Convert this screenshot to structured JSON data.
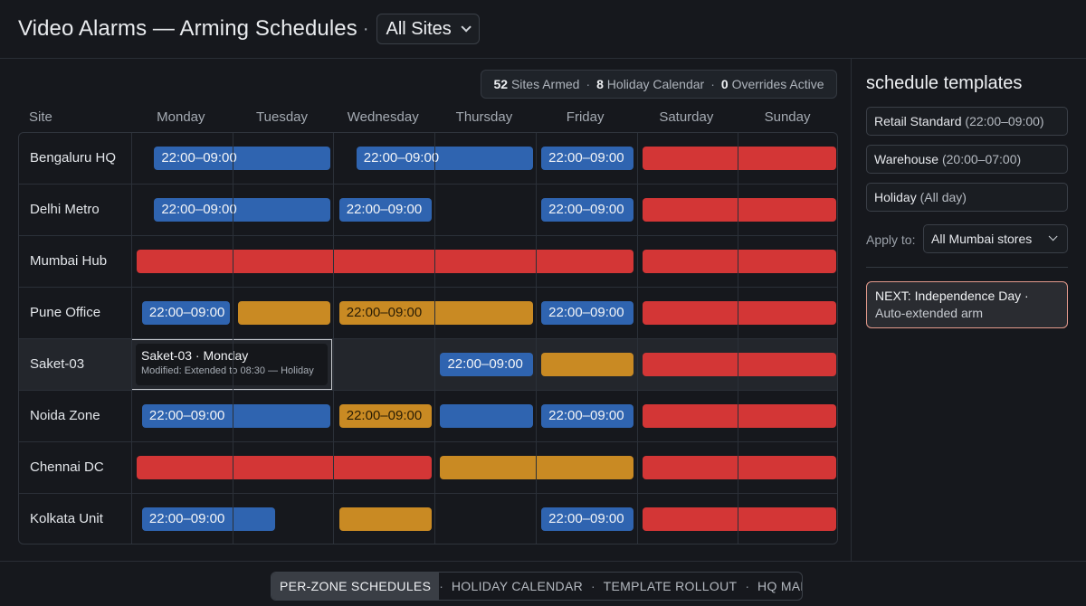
{
  "header": {
    "title": "Video Alarms — Arming Schedules",
    "separator": "·",
    "site_filter": "All Sites"
  },
  "summary": {
    "armed_count": "52",
    "armed_label": "Sites Armed",
    "holiday_count": "8",
    "holiday_label": "Holiday Calendar",
    "overrides_count": "0",
    "overrides_label": "Overrides Active"
  },
  "grid": {
    "site_header": "Site",
    "days": [
      "Monday",
      "Tuesday",
      "Wednesday",
      "Thursday",
      "Friday",
      "Saturday",
      "Sunday"
    ],
    "rows": [
      {
        "site": "Bengaluru HQ",
        "bars": [
          {
            "type": "blue",
            "start": 0.2,
            "end": 2.0,
            "label": "22:00–09:00"
          },
          {
            "type": "blue",
            "start": 2.2,
            "end": 4.0,
            "label": "22:00–09:00"
          },
          {
            "type": "blue",
            "start": 4.03,
            "end": 5.0,
            "label": "22:00–09:00"
          },
          {
            "type": "red",
            "start": 5.03,
            "end": 7.0,
            "label": ""
          }
        ]
      },
      {
        "site": "Delhi Metro",
        "bars": [
          {
            "type": "blue",
            "start": 0.2,
            "end": 2.0,
            "label": "22:00–09:00"
          },
          {
            "type": "blue",
            "start": 2.03,
            "end": 3.0,
            "label": "22:00–09:00"
          },
          {
            "type": "blue",
            "start": 4.03,
            "end": 5.0,
            "label": "22:00–09:00"
          },
          {
            "type": "red",
            "start": 5.03,
            "end": 7.0,
            "label": ""
          }
        ]
      },
      {
        "site": "Mumbai Hub",
        "bars": [
          {
            "type": "red",
            "start": 0.03,
            "end": 5.0,
            "label": ""
          },
          {
            "type": "red",
            "start": 5.03,
            "end": 7.0,
            "label": ""
          }
        ]
      },
      {
        "site": "Pune Office",
        "bars": [
          {
            "type": "blue",
            "start": 0.08,
            "end": 1.0,
            "label": "22:00–09:00"
          },
          {
            "type": "amber",
            "start": 1.03,
            "end": 2.0,
            "label": ""
          },
          {
            "type": "amber",
            "start": 2.03,
            "end": 4.0,
            "label": "22:00–09:00"
          },
          {
            "type": "blue",
            "start": 4.03,
            "end": 5.0,
            "label": "22:00–09:00"
          },
          {
            "type": "red",
            "start": 5.03,
            "end": 7.0,
            "label": ""
          }
        ]
      },
      {
        "site": "Saket-03",
        "selected": true,
        "tooltip": {
          "title": "Saket-03 · Monday",
          "subtitle": "Modified: Extended to 08:30 — Holiday"
        },
        "bars": [
          {
            "type": "blue",
            "start": 3.03,
            "end": 4.0,
            "label": "22:00–09:00"
          },
          {
            "type": "amber",
            "start": 4.03,
            "end": 5.0,
            "label": ""
          },
          {
            "type": "red",
            "start": 5.03,
            "end": 7.0,
            "label": ""
          }
        ]
      },
      {
        "site": "Noida Zone",
        "bars": [
          {
            "type": "blue",
            "start": 0.08,
            "end": 2.0,
            "label": "22:00–09:00"
          },
          {
            "type": "amber",
            "start": 2.03,
            "end": 3.0,
            "label": "22:00–09:00"
          },
          {
            "type": "blue",
            "start": 3.03,
            "end": 4.0,
            "label": ""
          },
          {
            "type": "blue",
            "start": 4.03,
            "end": 5.0,
            "label": "22:00–09:00"
          },
          {
            "type": "red",
            "start": 5.03,
            "end": 7.0,
            "label": ""
          }
        ]
      },
      {
        "site": "Chennai DC",
        "bars": [
          {
            "type": "red",
            "start": 0.03,
            "end": 3.0,
            "label": ""
          },
          {
            "type": "amber",
            "start": 3.03,
            "end": 5.0,
            "label": ""
          },
          {
            "type": "red",
            "start": 5.03,
            "end": 7.0,
            "label": ""
          }
        ]
      },
      {
        "site": "Kolkata Unit",
        "bars": [
          {
            "type": "blue",
            "start": 0.08,
            "end": 1.45,
            "label": "22:00–09:00"
          },
          {
            "type": "amber",
            "start": 2.03,
            "end": 3.0,
            "label": ""
          },
          {
            "type": "blue",
            "start": 4.03,
            "end": 5.0,
            "label": "22:00–09:00"
          },
          {
            "type": "red",
            "start": 5.03,
            "end": 7.0,
            "label": ""
          }
        ]
      }
    ]
  },
  "templates": {
    "heading": "schedule templates",
    "items": [
      {
        "name": "Retail Standard",
        "range": "(22:00–09:00)"
      },
      {
        "name": "Warehouse",
        "range": "(20:00–07:00)"
      },
      {
        "name": "Holiday",
        "range": "(All day)"
      }
    ],
    "apply_label": "Apply to:",
    "apply_value": "All Mumbai stores",
    "next_line1": "NEXT: Independence Day ·",
    "next_line2": "Auto-extended arm"
  },
  "footer": {
    "modes": [
      "PER-ZONE SCHEDULES",
      "HOLIDAY CALENDAR",
      "TEMPLATE ROLLOUT",
      "HQ MANAGED"
    ],
    "active_mode": 0
  },
  "colors": {
    "blue": "#2f64b0",
    "amber": "#c98a23",
    "red": "#d33636",
    "background": "#16181d"
  }
}
